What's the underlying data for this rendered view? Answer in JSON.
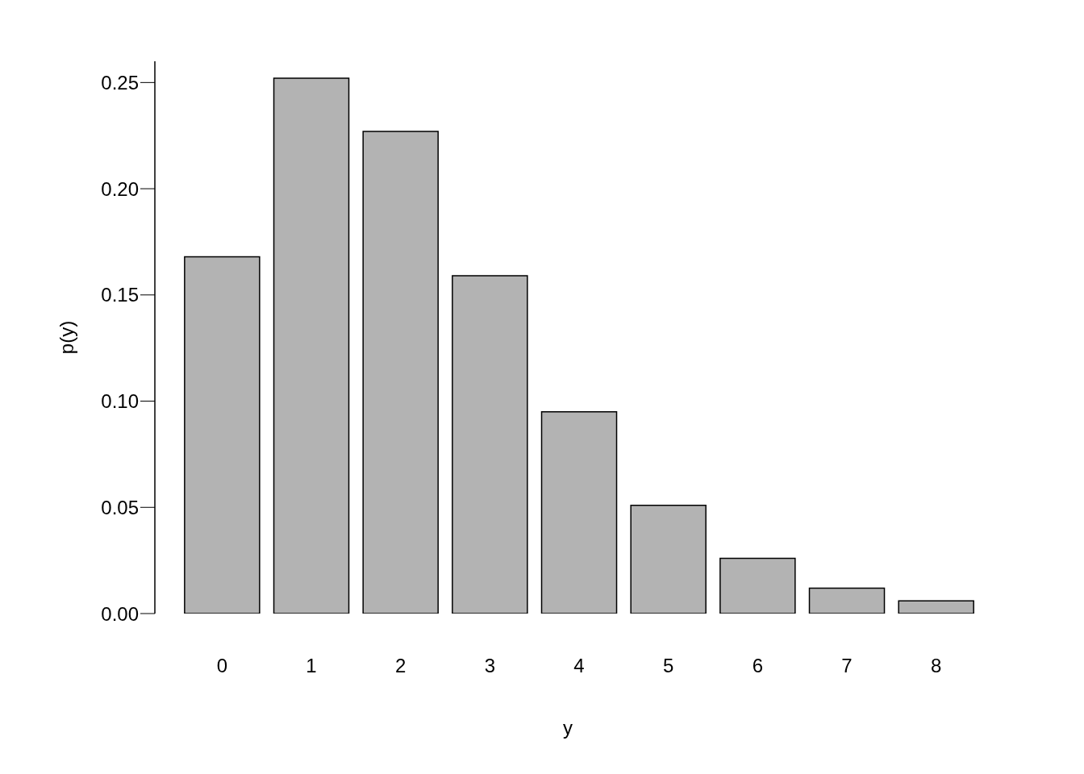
{
  "chart_data": {
    "type": "bar",
    "xlabel": "y",
    "ylabel": "p(y)",
    "categories": [
      "0",
      "1",
      "2",
      "3",
      "4",
      "5",
      "6",
      "7",
      "8"
    ],
    "values": [
      0.168,
      0.252,
      0.227,
      0.159,
      0.095,
      0.051,
      0.026,
      0.012,
      0.006
    ],
    "color": "#b3b3b3",
    "ylim": [
      0,
      0.26
    ],
    "yticks": [
      {
        "value": 0,
        "label": "0.00"
      },
      {
        "value": 0.05,
        "label": "0.05"
      },
      {
        "value": 0.1,
        "label": "0.10"
      },
      {
        "value": 0.15,
        "label": "0.15"
      },
      {
        "value": 0.2,
        "label": "0.20"
      },
      {
        "value": 0.25,
        "label": "0.25"
      }
    ],
    "grid": false
  }
}
